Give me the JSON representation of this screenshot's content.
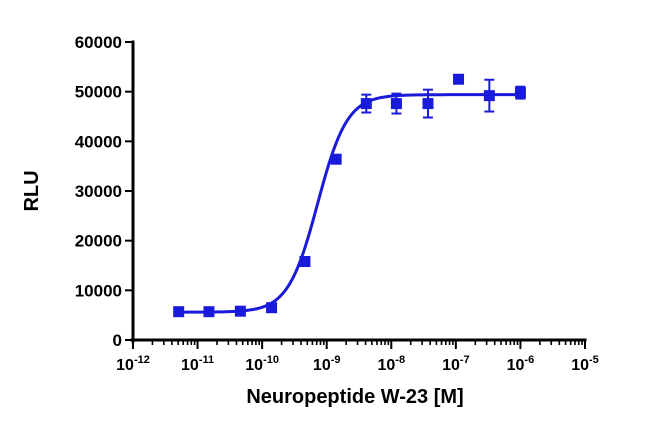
{
  "chart_data": {
    "type": "scatter",
    "title": "",
    "xlabel": "Neuropeptide W-23 [M]",
    "ylabel": "RLU",
    "x_scale": "log",
    "xlim": [
      1e-12,
      1e-05
    ],
    "ylim": [
      0,
      60000
    ],
    "x_ticks": [
      {
        "base": "10",
        "exp": "-12"
      },
      {
        "base": "10",
        "exp": "-11"
      },
      {
        "base": "10",
        "exp": "-10"
      },
      {
        "base": "10",
        "exp": "-9"
      },
      {
        "base": "10",
        "exp": "-8"
      },
      {
        "base": "10",
        "exp": "-7"
      },
      {
        "base": "10",
        "exp": "-6"
      },
      {
        "base": "10",
        "exp": "-5"
      }
    ],
    "y_ticks": [
      "0",
      "10000",
      "20000",
      "30000",
      "40000",
      "50000",
      "60000"
    ],
    "grid": false,
    "color": "#1a1adb",
    "points": [
      {
        "x": 5.1e-12,
        "y": 5700,
        "err": 400
      },
      {
        "x": 1.5e-11,
        "y": 5700,
        "err": 400
      },
      {
        "x": 4.6e-11,
        "y": 5800,
        "err": 400
      },
      {
        "x": 1.4e-10,
        "y": 6500,
        "err": 500
      },
      {
        "x": 4.6e-10,
        "y": 15800,
        "err": 600
      },
      {
        "x": 1.4e-09,
        "y": 36400,
        "err": 700
      },
      {
        "x": 4.1e-09,
        "y": 47600,
        "err": 1800
      },
      {
        "x": 1.2e-08,
        "y": 47600,
        "err": 2000
      },
      {
        "x": 3.7e-08,
        "y": 47600,
        "err": 2800
      },
      {
        "x": 1.1e-07,
        "y": 52500,
        "err": 800
      },
      {
        "x": 3.3e-07,
        "y": 49200,
        "err": 3200
      },
      {
        "x": 1e-06,
        "y": 49800,
        "err": 1200
      }
    ],
    "fit": {
      "model": "four-parameter logistic",
      "bottom": 5600,
      "top": 49400,
      "log_ec50": -9.14,
      "hill_slope": 1.9
    }
  }
}
